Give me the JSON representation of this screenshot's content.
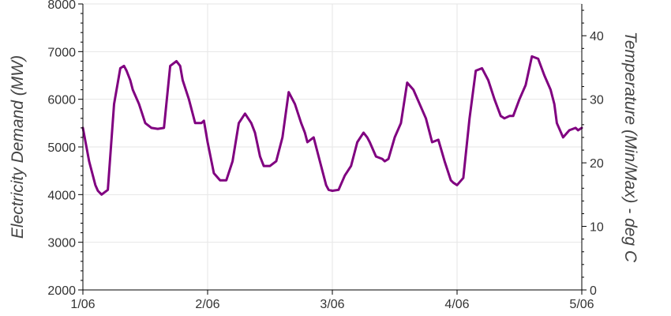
{
  "chart_data": {
    "type": "line",
    "title": "",
    "xlabel": "",
    "ylabel": "Electricity Demand (MW)",
    "y2label": "Temperature (Min/Max) - deg C",
    "xlim": [
      0,
      4
    ],
    "ylim": [
      2000,
      8000
    ],
    "y2lim": [
      0,
      45
    ],
    "x_ticks": [
      {
        "value": 0,
        "label": "1/06"
      },
      {
        "value": 1,
        "label": "2/06"
      },
      {
        "value": 2,
        "label": "3/06"
      },
      {
        "value": 3,
        "label": "4/06"
      },
      {
        "value": 4,
        "label": "5/06"
      }
    ],
    "y_ticks": [
      {
        "value": 2000,
        "label": "2000"
      },
      {
        "value": 3000,
        "label": "3000"
      },
      {
        "value": 4000,
        "label": "4000"
      },
      {
        "value": 5000,
        "label": "5000"
      },
      {
        "value": 6000,
        "label": "6000"
      },
      {
        "value": 7000,
        "label": "7000"
      },
      {
        "value": 8000,
        "label": "8000"
      }
    ],
    "y2_ticks": [
      {
        "value": 0,
        "label": "0"
      },
      {
        "value": 10,
        "label": "10"
      },
      {
        "value": 20,
        "label": "20"
      },
      {
        "value": 30,
        "label": "30"
      },
      {
        "value": 40,
        "label": "40"
      }
    ],
    "grid": true,
    "series": [
      {
        "color": "#800080",
        "x": [
          0,
          0.05,
          0.1,
          0.12,
          0.15,
          0.2,
          0.25,
          0.3,
          0.33,
          0.35,
          0.38,
          0.4,
          0.45,
          0.5,
          0.55,
          0.6,
          0.65,
          0.7,
          0.75,
          0.78,
          0.8,
          0.85,
          0.9,
          0.95,
          0.97,
          1.0,
          1.05,
          1.1,
          1.15,
          1.2,
          1.25,
          1.3,
          1.35,
          1.38,
          1.42,
          1.45,
          1.5,
          1.55,
          1.6,
          1.65,
          1.7,
          1.75,
          1.78,
          1.8,
          1.85,
          1.9,
          1.95,
          1.97,
          2.0,
          2.05,
          2.1,
          2.15,
          2.2,
          2.25,
          2.28,
          2.3,
          2.35,
          2.4,
          2.42,
          2.45,
          2.5,
          2.55,
          2.6,
          2.65,
          2.7,
          2.75,
          2.8,
          2.85,
          2.9,
          2.95,
          2.97,
          3.0,
          3.05,
          3.1,
          3.15,
          3.2,
          3.25,
          3.3,
          3.35,
          3.38,
          3.42,
          3.45,
          3.5,
          3.55,
          3.6,
          3.65,
          3.7,
          3.75,
          3.78,
          3.8,
          3.85,
          3.9,
          3.95,
          3.97,
          4.0
        ],
        "values": [
          5400,
          4700,
          4200,
          4080,
          4000,
          4100,
          5900,
          6650,
          6700,
          6600,
          6400,
          6200,
          5900,
          5500,
          5400,
          5380,
          5400,
          6700,
          6800,
          6700,
          6400,
          6000,
          5500,
          5500,
          5550,
          5100,
          4450,
          4300,
          4300,
          4700,
          5500,
          5700,
          5500,
          5300,
          4800,
          4600,
          4600,
          4700,
          5200,
          6150,
          5900,
          5500,
          5300,
          5100,
          5200,
          4700,
          4200,
          4100,
          4080,
          4100,
          4400,
          4600,
          5100,
          5300,
          5200,
          5100,
          4800,
          4750,
          4700,
          4750,
          5200,
          5500,
          6350,
          6200,
          5900,
          5600,
          5100,
          5150,
          4700,
          4300,
          4250,
          4200,
          4350,
          5600,
          6600,
          6650,
          6400,
          6000,
          5650,
          5600,
          5650,
          5650,
          6000,
          6300,
          6900,
          6850,
          6500,
          6200,
          5900,
          5500,
          5200,
          5350,
          5400,
          5350,
          5400
        ]
      }
    ]
  }
}
